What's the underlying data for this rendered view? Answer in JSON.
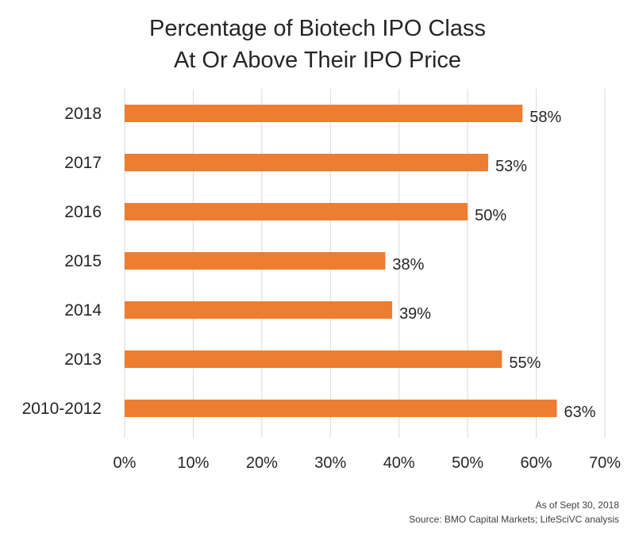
{
  "chart_data": {
    "type": "bar",
    "orientation": "horizontal",
    "title_lines": [
      "Percentage of Biotech IPO Class",
      "At Or Above Their IPO Price"
    ],
    "categories": [
      "2018",
      "2017",
      "2016",
      "2015",
      "2014",
      "2013",
      "2010-2012"
    ],
    "values": [
      58,
      53,
      50,
      38,
      39,
      55,
      63
    ],
    "value_labels": [
      "58%",
      "53%",
      "50%",
      "38%",
      "39%",
      "55%",
      "63%"
    ],
    "xlim": [
      0,
      70
    ],
    "x_ticks": [
      0,
      10,
      20,
      30,
      40,
      50,
      60,
      70
    ],
    "x_tick_labels": [
      "0%",
      "10%",
      "20%",
      "30%",
      "40%",
      "50%",
      "60%",
      "70%"
    ],
    "grid": true,
    "bar_color": "#ed7d31",
    "notes": [
      "As of Sept 30, 2018",
      "Source: BMO Capital Markets; LifeSciVC analysis"
    ]
  }
}
